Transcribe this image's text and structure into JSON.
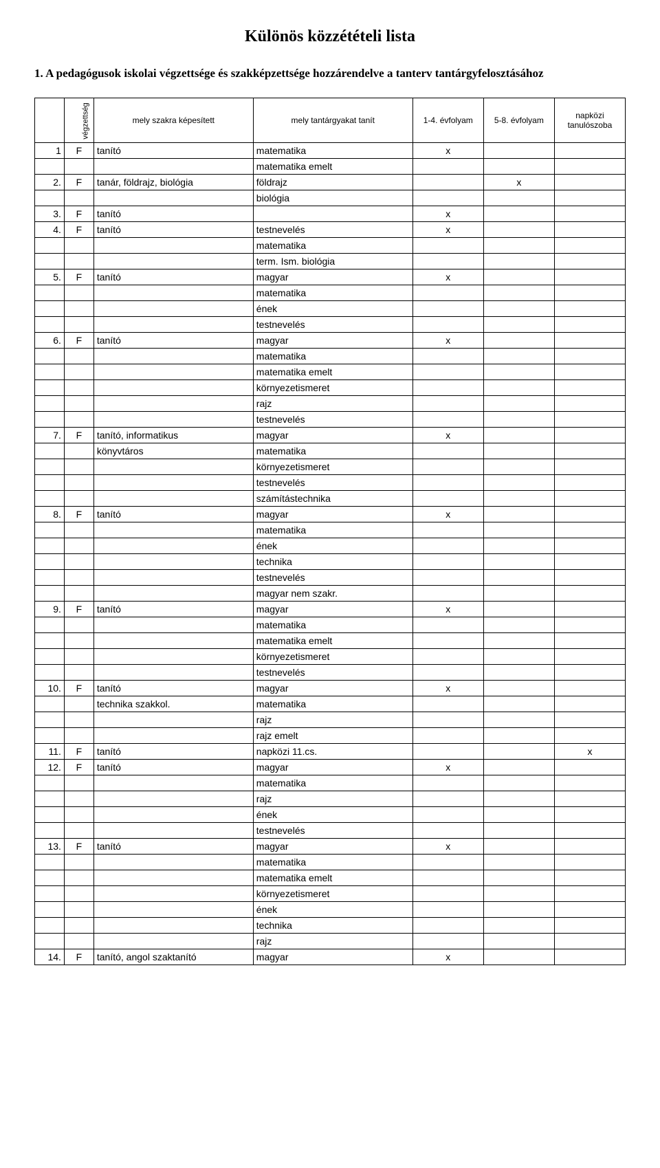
{
  "title": "Különös közzétételi lista",
  "intro_number": "1.",
  "intro_text": "A pedagógusok iskolai végzettsége és szakképzettsége hozzárendelve a tanterv tantárgyfelosztásához",
  "headers": {
    "vegzettseg": "végzettség",
    "szakra": "mely szakra képesített",
    "tantargy": "mely tantárgyakat tanít",
    "ev14": "1-4. évfolyam",
    "ev58": "5-8. évfolyam",
    "napkozi": "napközi tanulószoba"
  },
  "colors": {
    "background": "#ffffff",
    "text": "#000000",
    "border": "#000000"
  },
  "rows": [
    {
      "n": "1",
      "v": "F",
      "sz": "tanító",
      "tg": "matematika",
      "c14": "x",
      "c58": "",
      "nk": ""
    },
    {
      "n": "",
      "v": "",
      "sz": "",
      "tg": "matematika emelt",
      "c14": "",
      "c58": "",
      "nk": ""
    },
    {
      "n": "2.",
      "v": "F",
      "sz": "tanár, földrajz, biológia",
      "tg": "földrajz",
      "c14": "",
      "c58": "x",
      "nk": ""
    },
    {
      "n": "",
      "v": "",
      "sz": "",
      "tg": "biológia",
      "c14": "",
      "c58": "",
      "nk": ""
    },
    {
      "n": "3.",
      "v": "F",
      "sz": "tanító",
      "tg": "",
      "c14": "x",
      "c58": "",
      "nk": ""
    },
    {
      "n": "4.",
      "v": "F",
      "sz": "tanító",
      "tg": "testnevelés",
      "c14": "x",
      "c58": "",
      "nk": ""
    },
    {
      "n": "",
      "v": "",
      "sz": "",
      "tg": "matematika",
      "c14": "",
      "c58": "",
      "nk": ""
    },
    {
      "n": "",
      "v": "",
      "sz": "",
      "tg": "term. Ism. biológia",
      "c14": "",
      "c58": "",
      "nk": ""
    },
    {
      "n": "5.",
      "v": "F",
      "sz": "tanító",
      "tg": "magyar",
      "c14": "x",
      "c58": "",
      "nk": ""
    },
    {
      "n": "",
      "v": "",
      "sz": "",
      "tg": "matematika",
      "c14": "",
      "c58": "",
      "nk": ""
    },
    {
      "n": "",
      "v": "",
      "sz": "",
      "tg": "ének",
      "c14": "",
      "c58": "",
      "nk": ""
    },
    {
      "n": "",
      "v": "",
      "sz": "",
      "tg": "testnevelés",
      "c14": "",
      "c58": "",
      "nk": ""
    },
    {
      "n": "6.",
      "v": "F",
      "sz": "tanító",
      "tg": "magyar",
      "c14": "x",
      "c58": "",
      "nk": ""
    },
    {
      "n": "",
      "v": "",
      "sz": "",
      "tg": "matematika",
      "c14": "",
      "c58": "",
      "nk": ""
    },
    {
      "n": "",
      "v": "",
      "sz": "",
      "tg": "matematika emelt",
      "c14": "",
      "c58": "",
      "nk": ""
    },
    {
      "n": "",
      "v": "",
      "sz": "",
      "tg": "környezetismeret",
      "c14": "",
      "c58": "",
      "nk": ""
    },
    {
      "n": "",
      "v": "",
      "sz": "",
      "tg": "rajz",
      "c14": "",
      "c58": "",
      "nk": ""
    },
    {
      "n": "",
      "v": "",
      "sz": "",
      "tg": "testnevelés",
      "c14": "",
      "c58": "",
      "nk": ""
    },
    {
      "n": "7.",
      "v": "F",
      "sz": "tanító, informatikus",
      "tg": "magyar",
      "c14": "x",
      "c58": "",
      "nk": ""
    },
    {
      "n": "",
      "v": "",
      "sz": "könyvtáros",
      "tg": "matematika",
      "c14": "",
      "c58": "",
      "nk": ""
    },
    {
      "n": "",
      "v": "",
      "sz": "",
      "tg": "környezetismeret",
      "c14": "",
      "c58": "",
      "nk": ""
    },
    {
      "n": "",
      "v": "",
      "sz": "",
      "tg": "testnevelés",
      "c14": "",
      "c58": "",
      "nk": ""
    },
    {
      "n": "",
      "v": "",
      "sz": "",
      "tg": "számítástechnika",
      "c14": "",
      "c58": "",
      "nk": ""
    },
    {
      "n": "8.",
      "v": "F",
      "sz": "tanító",
      "tg": "magyar",
      "c14": "x",
      "c58": "",
      "nk": ""
    },
    {
      "n": "",
      "v": "",
      "sz": "",
      "tg": "matematika",
      "c14": "",
      "c58": "",
      "nk": ""
    },
    {
      "n": "",
      "v": "",
      "sz": "",
      "tg": "ének",
      "c14": "",
      "c58": "",
      "nk": ""
    },
    {
      "n": "",
      "v": "",
      "sz": "",
      "tg": "technika",
      "c14": "",
      "c58": "",
      "nk": ""
    },
    {
      "n": "",
      "v": "",
      "sz": "",
      "tg": "testnevelés",
      "c14": "",
      "c58": "",
      "nk": ""
    },
    {
      "n": "",
      "v": "",
      "sz": "",
      "tg": "magyar nem szakr.",
      "c14": "",
      "c58": "",
      "nk": ""
    },
    {
      "n": "9.",
      "v": "F",
      "sz": "tanító",
      "tg": "magyar",
      "c14": "x",
      "c58": "",
      "nk": ""
    },
    {
      "n": "",
      "v": "",
      "sz": "",
      "tg": "matematika",
      "c14": "",
      "c58": "",
      "nk": ""
    },
    {
      "n": "",
      "v": "",
      "sz": "",
      "tg": "matematika emelt",
      "c14": "",
      "c58": "",
      "nk": ""
    },
    {
      "n": "",
      "v": "",
      "sz": "",
      "tg": "környezetismeret",
      "c14": "",
      "c58": "",
      "nk": ""
    },
    {
      "n": "",
      "v": "",
      "sz": "",
      "tg": "testnevelés",
      "c14": "",
      "c58": "",
      "nk": ""
    },
    {
      "n": "10.",
      "v": "F",
      "sz": "tanító",
      "tg": "magyar",
      "c14": "x",
      "c58": "",
      "nk": ""
    },
    {
      "n": "",
      "v": "",
      "sz": "technika szakkol.",
      "tg": "matematika",
      "c14": "",
      "c58": "",
      "nk": ""
    },
    {
      "n": "",
      "v": "",
      "sz": "",
      "tg": "rajz",
      "c14": "",
      "c58": "",
      "nk": ""
    },
    {
      "n": "",
      "v": "",
      "sz": "",
      "tg": "rajz emelt",
      "c14": "",
      "c58": "",
      "nk": ""
    },
    {
      "n": "11.",
      "v": "F",
      "sz": "tanító",
      "tg": "napközi 11.cs.",
      "c14": "",
      "c58": "",
      "nk": "x"
    },
    {
      "n": "12.",
      "v": "F",
      "sz": "tanító",
      "tg": "magyar",
      "c14": "x",
      "c58": "",
      "nk": ""
    },
    {
      "n": "",
      "v": "",
      "sz": "",
      "tg": "matematika",
      "c14": "",
      "c58": "",
      "nk": ""
    },
    {
      "n": "",
      "v": "",
      "sz": "",
      "tg": "rajz",
      "c14": "",
      "c58": "",
      "nk": ""
    },
    {
      "n": "",
      "v": "",
      "sz": "",
      "tg": "ének",
      "c14": "",
      "c58": "",
      "nk": ""
    },
    {
      "n": "",
      "v": "",
      "sz": "",
      "tg": "testnevelés",
      "c14": "",
      "c58": "",
      "nk": ""
    },
    {
      "n": "13.",
      "v": "F",
      "sz": "tanító",
      "tg": "magyar",
      "c14": "x",
      "c58": "",
      "nk": ""
    },
    {
      "n": "",
      "v": "",
      "sz": "",
      "tg": "matematika",
      "c14": "",
      "c58": "",
      "nk": ""
    },
    {
      "n": "",
      "v": "",
      "sz": "",
      "tg": "matematika emelt",
      "c14": "",
      "c58": "",
      "nk": ""
    },
    {
      "n": "",
      "v": "",
      "sz": "",
      "tg": "környezetismeret",
      "c14": "",
      "c58": "",
      "nk": ""
    },
    {
      "n": "",
      "v": "",
      "sz": "",
      "tg": "ének",
      "c14": "",
      "c58": "",
      "nk": ""
    },
    {
      "n": "",
      "v": "",
      "sz": "",
      "tg": "technika",
      "c14": "",
      "c58": "",
      "nk": ""
    },
    {
      "n": "",
      "v": "",
      "sz": "",
      "tg": "rajz",
      "c14": "",
      "c58": "",
      "nk": ""
    },
    {
      "n": "14.",
      "v": "F",
      "sz": "tanító, angol szaktanító",
      "tg": "magyar",
      "c14": "x",
      "c58": "",
      "nk": ""
    }
  ]
}
